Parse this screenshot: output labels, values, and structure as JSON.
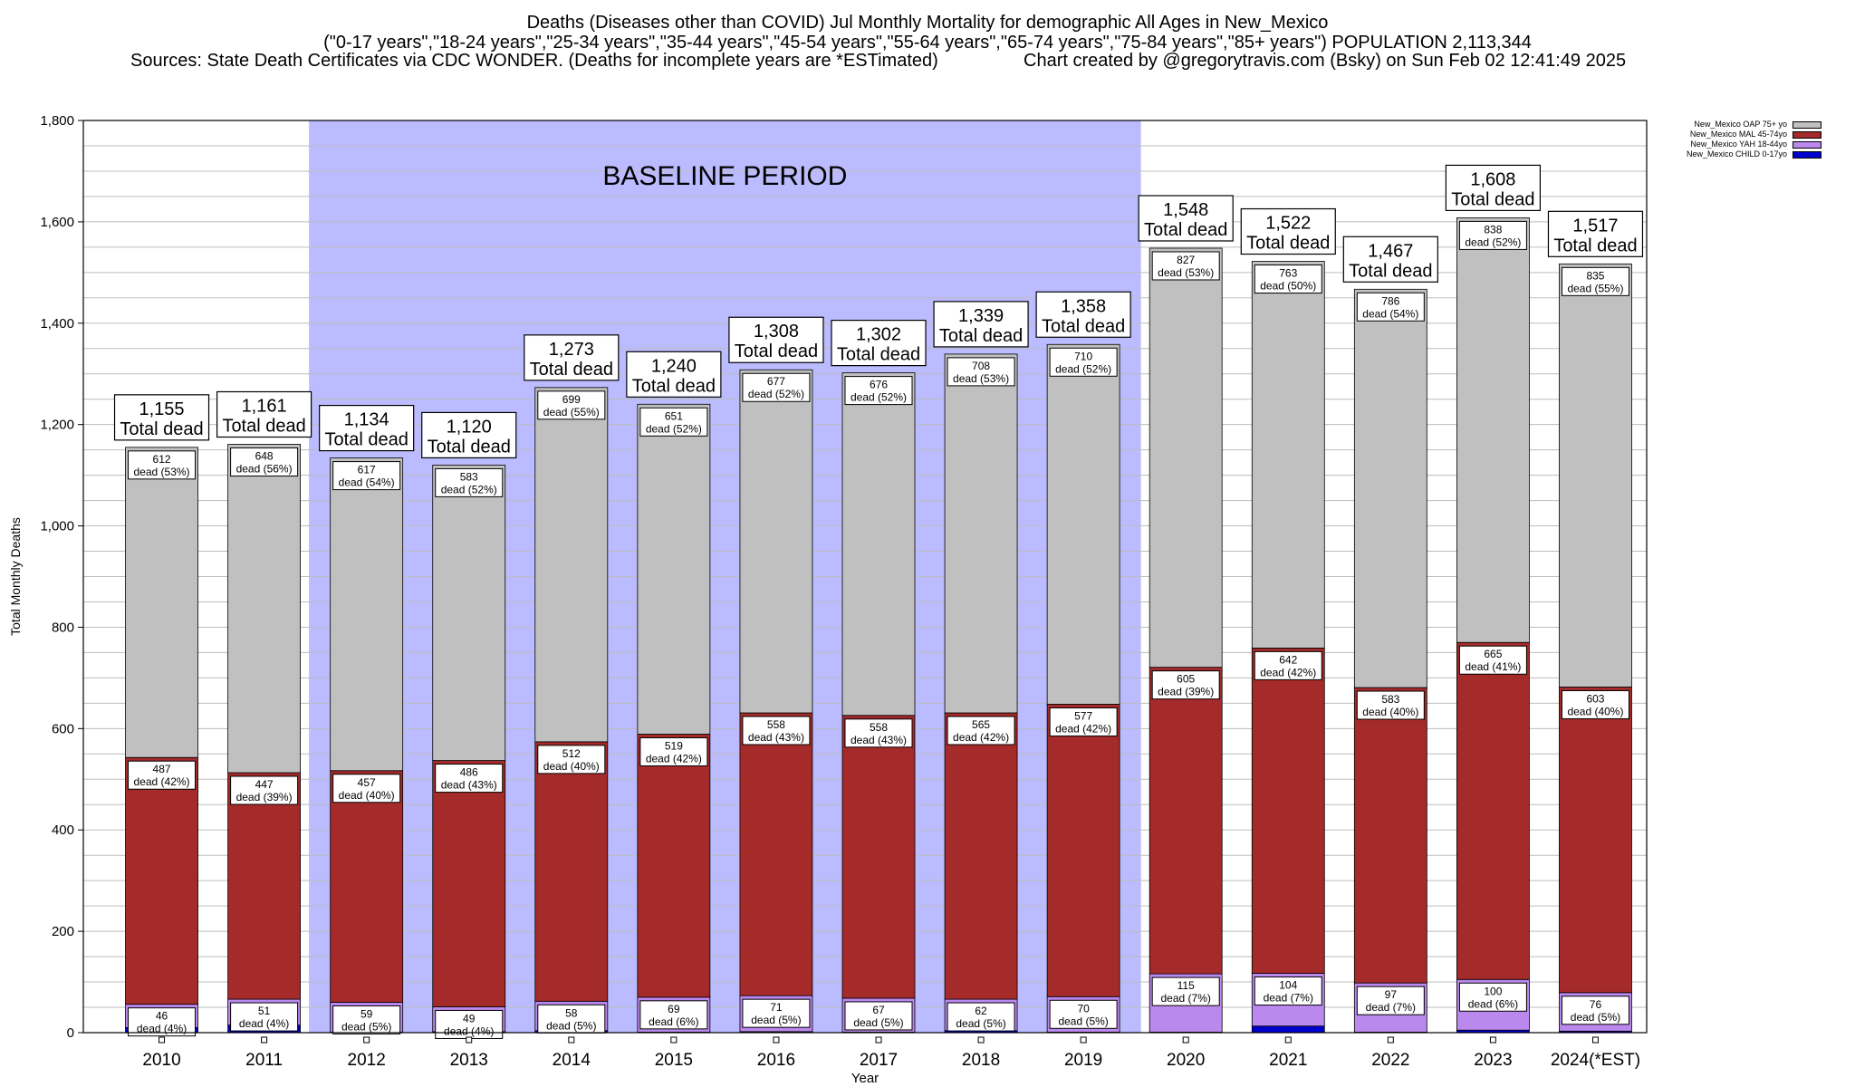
{
  "header": {
    "title_line1": "Deaths (Diseases other than COVID) Jul Monthly Mortality for demographic All Ages in New_Mexico",
    "title_line2": "(\"0-17 years\",\"18-24 years\",\"25-34 years\",\"35-44 years\",\"45-54 years\",\"55-64 years\",\"65-74 years\",\"75-84 years\",\"85+ years\") POPULATION 2,113,344",
    "sources": "Sources: State Death Certificates via CDC WONDER. (Deaths for incomplete years are *ESTimated)",
    "credit": "Chart created by @gregorytravis.com (Bsky) on Sun Feb 02 12:41:49 2025"
  },
  "chart_data": {
    "type": "bar",
    "stacked": true,
    "ylabel": "Total Monthly Deaths",
    "xlabel": "Year",
    "ylim": [
      0,
      1800
    ],
    "yticks": [
      0,
      200,
      400,
      600,
      800,
      1000,
      1200,
      1400,
      1600,
      1800
    ],
    "grid": true,
    "legend_position": "top-right",
    "baseline_label": "BASELINE PERIOD",
    "baseline_range": [
      "2012",
      "2019"
    ],
    "total_caption": "Total dead",
    "segment_caption": "dead",
    "categories": [
      "2010",
      "2011",
      "2012",
      "2013",
      "2014",
      "2015",
      "2016",
      "2017",
      "2018",
      "2019",
      "2020",
      "2021",
      "2022",
      "2023",
      "2024(*EST)"
    ],
    "totals": [
      1155,
      1161,
      1134,
      1120,
      1273,
      1240,
      1308,
      1302,
      1339,
      1358,
      1548,
      1522,
      1467,
      1608,
      1517
    ],
    "series": [
      {
        "name": "New_Mexico CHILD 0-17yo",
        "color": "#0000cc",
        "values": [
          10,
          15,
          1,
          2,
          4,
          1,
          2,
          1,
          4,
          1,
          1,
          13,
          1,
          5,
          3
        ]
      },
      {
        "name": "New_Mexico YAH 18-44yo",
        "color": "#bb88ee",
        "values": [
          46,
          51,
          59,
          49,
          58,
          69,
          71,
          67,
          62,
          70,
          115,
          104,
          97,
          100,
          76
        ],
        "labels": [
          "46\ndead (4%)",
          "51\ndead (4%)",
          "59\ndead (5%)",
          "49\ndead (4%)",
          "58\ndead (5%)",
          "69\ndead (6%)",
          "71\ndead (5%)",
          "67\ndead (5%)",
          "62\ndead (5%)",
          "70\ndead (5%)",
          "115\ndead (7%)",
          "104\ndead (7%)",
          "97\ndead (7%)",
          "100\ndead (6%)",
          "76\ndead (5%)"
        ]
      },
      {
        "name": "New_Mexico MAL 45-74yo",
        "color": "#a52a2a",
        "values": [
          487,
          447,
          457,
          486,
          512,
          519,
          558,
          558,
          565,
          577,
          605,
          642,
          583,
          665,
          603
        ],
        "labels": [
          "487\ndead (42%)",
          "447\ndead (39%)",
          "457\ndead (40%)",
          "486\ndead (43%)",
          "512\ndead (40%)",
          "519\ndead (42%)",
          "558\ndead (43%)",
          "558\ndead (43%)",
          "565\ndead (42%)",
          "577\ndead (42%)",
          "605\ndead (39%)",
          "642\ndead (42%)",
          "583\ndead (40%)",
          "665\ndead (41%)",
          "603\ndead (40%)"
        ]
      },
      {
        "name": "New_Mexico OAP 75+ yo",
        "color": "#c0c0c0",
        "values": [
          612,
          648,
          617,
          583,
          699,
          651,
          677,
          676,
          708,
          710,
          827,
          763,
          786,
          838,
          835
        ],
        "labels": [
          "612\ndead (53%)",
          "648\ndead (56%)",
          "617\ndead (54%)",
          "583\ndead (52%)",
          "699\ndead (55%)",
          "651\ndead (52%)",
          "677\ndead (52%)",
          "676\ndead (52%)",
          "708\ndead (53%)",
          "710\ndead (52%)",
          "827\ndead (53%)",
          "763\ndead (50%)",
          "786\ndead (54%)",
          "838\ndead (52%)",
          "835\ndead (55%)"
        ]
      }
    ],
    "total_labels": [
      "1,155",
      "1,161",
      "1,134",
      "1,120",
      "1,273",
      "1,240",
      "1,308",
      "1,302",
      "1,339",
      "1,358",
      "1,548",
      "1,522",
      "1,467",
      "1,608",
      "1,517"
    ],
    "ytick_labels": [
      "0",
      "200",
      "400",
      "600",
      "800",
      "1,000",
      "1,200",
      "1,400",
      "1,600",
      "1,800"
    ]
  },
  "legend": {
    "items": [
      {
        "label": "New_Mexico OAP 75+ yo",
        "color": "#c0c0c0"
      },
      {
        "label": "New_Mexico MAL 45-74yo",
        "color": "#a52a2a"
      },
      {
        "label": "New_Mexico YAH 18-44yo",
        "color": "#bb88ee"
      },
      {
        "label": "New_Mexico CHILD 0-17yo",
        "color": "#0000cc"
      }
    ]
  }
}
